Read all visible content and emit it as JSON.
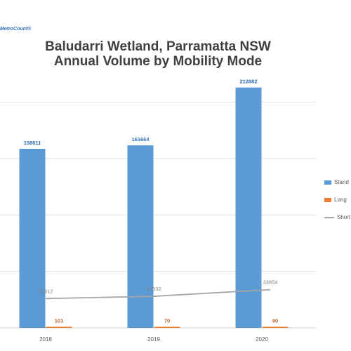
{
  "brand": "MetroCount®",
  "chart_data": {
    "type": "bar",
    "title_line1": "Baludarri Wetland, Parramatta NSW",
    "title_line2": "Annual Volume by Mobility Mode",
    "categories": [
      "2018",
      "2019",
      "2020"
    ],
    "ylim": [
      0,
      250000
    ],
    "grid": true,
    "legend_position": "right",
    "series": [
      {
        "name": "Stand",
        "kind": "bar",
        "color": "#5b9bd5",
        "values": [
          158611,
          161664,
          212882
        ],
        "labels": [
          "158611",
          "161664",
          "212882"
        ]
      },
      {
        "name": "Long",
        "kind": "bar",
        "color": "#ed7d31",
        "values": [
          101,
          70,
          90
        ],
        "labels": [
          "101",
          "70",
          "90"
        ]
      },
      {
        "name": "Short",
        "kind": "line",
        "color": "#a5a5a5",
        "values": [
          25912,
          27932,
          33854
        ],
        "labels": [
          "25912",
          "27932",
          "33854"
        ]
      }
    ]
  }
}
